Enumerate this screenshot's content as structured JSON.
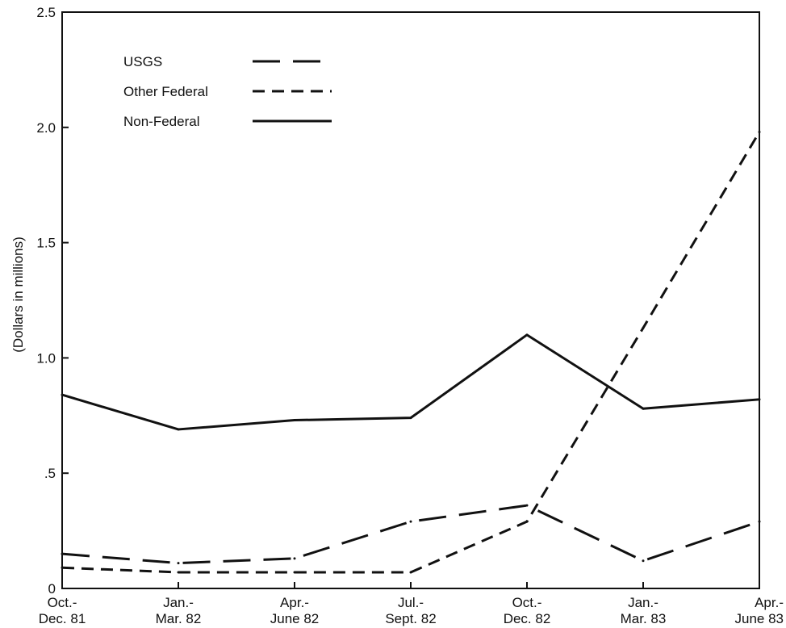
{
  "chart_data": {
    "type": "line",
    "ylabel": "(Dollars in millions)",
    "xlabel": "",
    "ylim": [
      0,
      2.5
    ],
    "y_ticks": [
      {
        "value": 0,
        "label": "0"
      },
      {
        "value": 0.5,
        "label": ".5"
      },
      {
        "value": 1.0,
        "label": "1.0"
      },
      {
        "value": 1.5,
        "label": "1.5"
      },
      {
        "value": 2.0,
        "label": "2.0"
      },
      {
        "value": 2.5,
        "label": "2.5"
      }
    ],
    "categories": [
      [
        "Oct.-",
        "Dec. 81"
      ],
      [
        "Jan.-",
        "Mar. 82"
      ],
      [
        "Apr.-",
        "June 82"
      ],
      [
        "Jul.-",
        "Sept. 82"
      ],
      [
        "Oct.-",
        "Dec. 82"
      ],
      [
        "Jan.-",
        "Mar. 83"
      ],
      [
        "Apr.-",
        "June 83"
      ]
    ],
    "series": [
      {
        "name": "USGS",
        "style": "long-dash",
        "values": [
          0.15,
          0.11,
          0.13,
          0.29,
          0.36,
          0.12,
          0.29
        ]
      },
      {
        "name": "Other Federal",
        "style": "short-dash",
        "values": [
          0.09,
          0.07,
          0.07,
          0.07,
          0.29,
          1.13,
          1.98
        ]
      },
      {
        "name": "Non-Federal",
        "style": "solid",
        "values": [
          0.84,
          0.69,
          0.73,
          0.74,
          1.1,
          0.78,
          0.82
        ]
      }
    ],
    "legend": "top-left, inside plot",
    "grid": false,
    "color": "#111111"
  }
}
